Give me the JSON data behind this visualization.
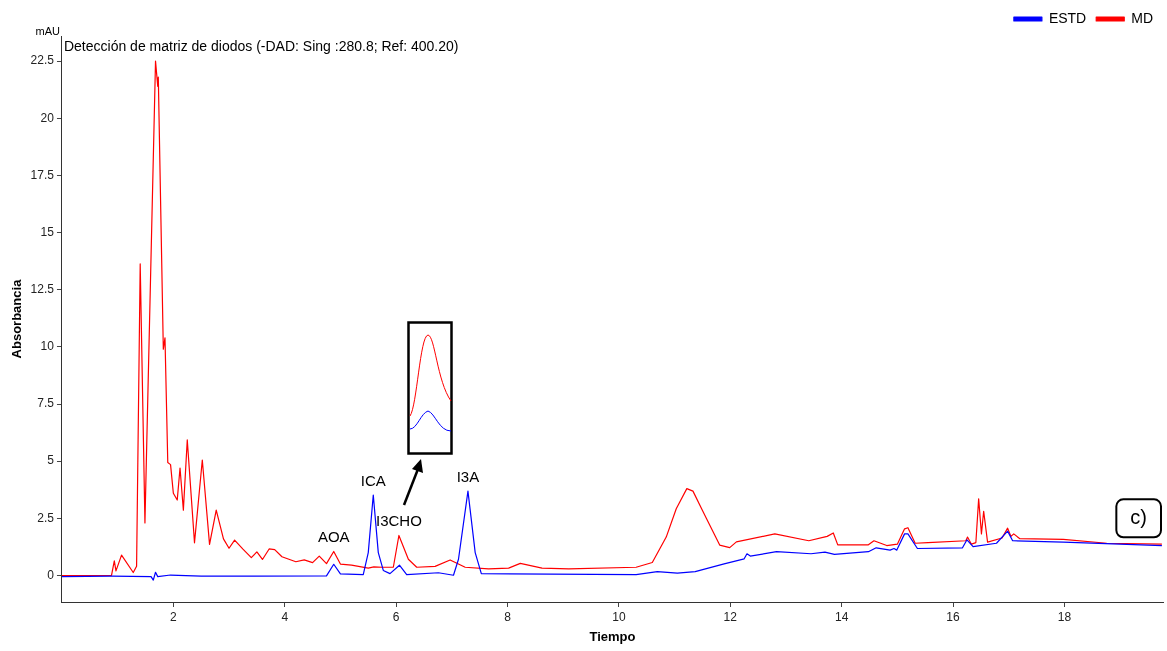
{
  "chart_data": {
    "type": "line",
    "title": "Detección de matriz de diodos (-DAD: Sing :280.8; Ref: 400.20)",
    "xlabel": "Tiempo",
    "ylabel": "Absorbancia",
    "xlim": [
      0,
      19.77
    ],
    "xticks": [
      2,
      4,
      6,
      8,
      10,
      12,
      14,
      16,
      18
    ],
    "ylim": [
      -1.16,
      23.6
    ],
    "yticks": [
      0,
      2.5,
      5,
      7.5,
      10,
      12.5,
      15,
      17.5,
      20,
      22.5
    ],
    "grid": false,
    "legend": "top right",
    "marker": "none",
    "line_style": "solid",
    "series": [
      {
        "name": "ESTD",
        "color": "#0000ff",
        "x": [
          0,
          0.9,
          1.6,
          1.64,
          1.68,
          1.72,
          1.95,
          2.5,
          4.75,
          4.88,
          5.0,
          5.41,
          5.5,
          5.59,
          5.68,
          5.77,
          5.89,
          6.06,
          6.19,
          6.76,
          7.03,
          7.12,
          7.29,
          7.42,
          7.53,
          10.31,
          10.69,
          11.05,
          11.37,
          11.89,
          12.25,
          12.3,
          12.36,
          12.83,
          13.45,
          13.7,
          13.87,
          14.48,
          14.62,
          14.87,
          14.94,
          14.99,
          15.13,
          15.19,
          15.36,
          16.17,
          16.25,
          16.36,
          16.78,
          16.98,
          17.07,
          17.98,
          19.75
        ],
        "values": [
          -0.05,
          -0.03,
          -0.05,
          -0.2,
          0.14,
          -0.05,
          0.02,
          -0.03,
          -0.02,
          0.49,
          0.07,
          0.04,
          1.0,
          3.52,
          1.0,
          0.22,
          0.08,
          0.45,
          0.04,
          0.12,
          0.01,
          0.71,
          3.69,
          1.0,
          0.08,
          0.04,
          0.17,
          0.1,
          0.17,
          0.51,
          0.73,
          0.95,
          0.85,
          1.04,
          0.95,
          1.02,
          0.92,
          1.04,
          1.21,
          1.11,
          1.18,
          1.11,
          1.82,
          1.82,
          1.18,
          1.21,
          1.56,
          1.26,
          1.41,
          1.94,
          1.52,
          1.46,
          1.31
        ]
      },
      {
        "name": "MD",
        "color": "#ff0000",
        "x": [
          0,
          0.89,
          0.94,
          0.97,
          1.07,
          1.28,
          1.34,
          1.405,
          1.49,
          1.68,
          1.72,
          1.73,
          1.82,
          1.85,
          1.9,
          1.95,
          2.0,
          2.07,
          2.12,
          2.18,
          2.25,
          2.38,
          2.52,
          2.65,
          2.77,
          2.9,
          3.0,
          3.1,
          3.25,
          3.4,
          3.5,
          3.6,
          3.72,
          3.82,
          3.95,
          4.2,
          4.35,
          4.5,
          4.62,
          4.75,
          4.88,
          5.0,
          5.2,
          5.5,
          5.6,
          5.75,
          5.95,
          6.05,
          6.22,
          6.37,
          6.7,
          6.97,
          7.24,
          7.66,
          8.02,
          8.23,
          8.62,
          9.1,
          10.31,
          10.6,
          10.85,
          11.03,
          11.22,
          11.33,
          11.57,
          11.81,
          11.99,
          12.11,
          12.8,
          13.41,
          13.74,
          13.85,
          13.93,
          14.48,
          14.58,
          14.81,
          15.0,
          15.13,
          15.19,
          15.32,
          15.55,
          16.23,
          16.26,
          16.33,
          16.41,
          16.46,
          16.51,
          16.55,
          16.62,
          16.88,
          16.98,
          17.04,
          17.09,
          17.2,
          17.98,
          18.76,
          19.75
        ],
        "values": [
          0,
          0,
          0.64,
          0.2,
          0.89,
          0.13,
          0.4,
          13.63,
          2.3,
          22.5,
          21.4,
          21.8,
          9.9,
          10.4,
          4.94,
          4.85,
          3.6,
          3.3,
          4.7,
          2.86,
          5.93,
          1.43,
          5.05,
          1.36,
          2.86,
          1.6,
          1.19,
          1.55,
          1.15,
          0.78,
          1.03,
          0.7,
          1.16,
          1.13,
          0.82,
          0.6,
          0.68,
          0.56,
          0.85,
          0.52,
          1.05,
          0.5,
          0.45,
          0.32,
          0.38,
          0.36,
          0.36,
          1.75,
          0.71,
          0.36,
          0.4,
          0.68,
          0.36,
          0.29,
          0.32,
          0.53,
          0.32,
          0.29,
          0.36,
          0.57,
          1.68,
          2.92,
          3.8,
          3.69,
          2.5,
          1.33,
          1.22,
          1.47,
          1.82,
          1.52,
          1.71,
          1.86,
          1.34,
          1.34,
          1.52,
          1.31,
          1.37,
          2.04,
          2.09,
          1.41,
          1.44,
          1.52,
          1.68,
          1.37,
          1.44,
          3.35,
          1.82,
          2.81,
          1.46,
          1.64,
          2.07,
          1.71,
          1.82,
          1.61,
          1.58,
          1.41,
          1.37
        ]
      }
    ],
    "annotations": [
      "mAU",
      "c)",
      {
        "text": "AOA",
        "x": 4.88,
        "y": 1.05
      },
      {
        "text": "ICA",
        "x": 5.59,
        "y": 3.52
      },
      {
        "text": "I3CHO",
        "x": 6.05,
        "y": 1.75
      },
      {
        "text": "I3A",
        "x": 7.29,
        "y": 3.69
      }
    ]
  }
}
